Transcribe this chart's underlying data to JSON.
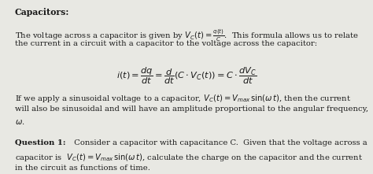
{
  "title": "Capacitors:",
  "bg_color": "#e8e8e3",
  "text_color": "#1a1a1a",
  "figsize": [
    4.74,
    2.21
  ],
  "dpi": 100,
  "p1_line1": "The voltage across a capacitor is given by $V_C(t) = \\frac{q(t)}{C}$.  This formula allows us to relate",
  "p1_line2": "the current in a circuit with a capacitor to the voltage across the capacitor:",
  "equation1": "$i(t) = \\dfrac{dq}{dt} = \\dfrac{d}{dt}\\left(C \\cdot V_C(t)\\right) = C \\cdot \\dfrac{dV_C}{dt}$",
  "p2_line1": "If we apply a sinusoidal voltage to a capacitor, $V_C(t) = V_{max}\\,\\sin(\\omega\\, t)$, then the current",
  "p2_line2": "will also be sinusoidal and will have an amplitude proportional to the angular frequency,",
  "p2_line3": "$\\omega$.",
  "q1_bold": "Question 1:",
  "q1_line1": "  Consider a capacitor with capacitance C.  Given that the voltage across a",
  "q1_line2": "capacitor is  $V_C(t) = V_{max}\\,\\sin(\\omega\\, t)$, calculate the charge on the capacitor and the current",
  "q1_line3": "in the circuit as functions of time.",
  "font_size_body": 7.2,
  "font_size_title": 7.8
}
